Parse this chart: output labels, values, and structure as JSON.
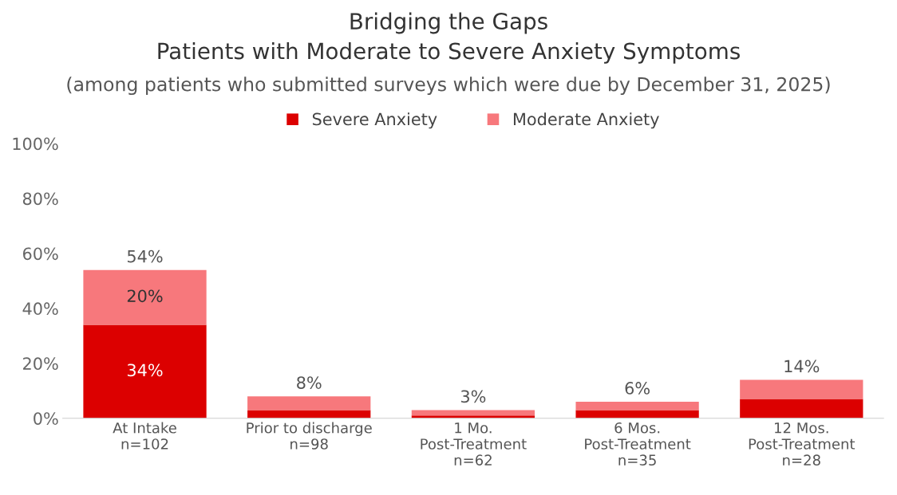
{
  "chart_data": {
    "type": "bar",
    "stacked": true,
    "title": "Bridging the Gaps\nPatients with Moderate to Severe Anxiety Symptoms",
    "subtitle": "(among patients who submitted surveys which were due by December 31, 2025)",
    "categories": [
      "At Intake\nn=102",
      "Prior to discharge\nn=98",
      "1 Mo.\nPost-Treatment\nn=62",
      "6 Mos.\nPost-Treatment\nn=35",
      "12 Mos.\nPost-Treatment\nn=28"
    ],
    "series": [
      {
        "name": "Severe Anxiety",
        "color": "#dc0000",
        "values": [
          34,
          3,
          1,
          3,
          7
        ],
        "value_labels": [
          "34%",
          null,
          null,
          null,
          null
        ]
      },
      {
        "name": "Moderate Anxiety",
        "color": "#f7787c",
        "values": [
          20,
          5,
          2,
          3,
          7
        ],
        "value_labels": [
          "20%",
          null,
          null,
          null,
          null
        ]
      }
    ],
    "totals": [
      "54%",
      "8%",
      "3%",
      "6%",
      "14%"
    ],
    "ylim": [
      0,
      100
    ],
    "yticks": [
      {
        "value": 0,
        "label": "0%"
      },
      {
        "value": 20,
        "label": "20%"
      },
      {
        "value": 40,
        "label": "40%"
      },
      {
        "value": 60,
        "label": "60%"
      },
      {
        "value": 80,
        "label": "80%"
      },
      {
        "value": 100,
        "label": "100%"
      }
    ],
    "grid": false,
    "legend": "top"
  }
}
